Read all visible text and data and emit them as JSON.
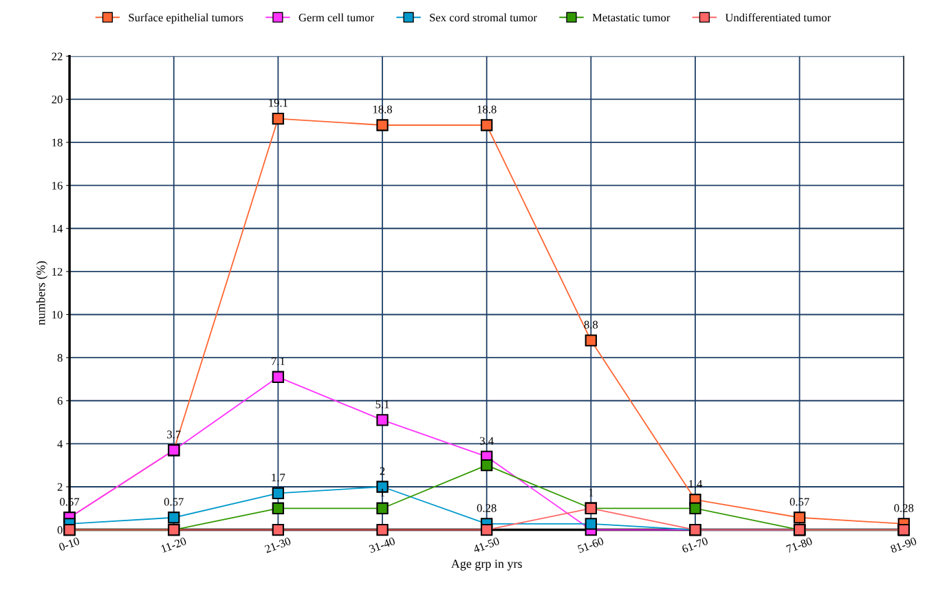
{
  "chart_data": {
    "type": "line",
    "xlabel": "Age grp in yrs",
    "ylabel": "numbers (%)",
    "categories": [
      "0-10",
      "11-20",
      "21-30",
      "31-40",
      "41-50",
      "51-60",
      "61-70",
      "71-80",
      "81-90"
    ],
    "series": [
      {
        "name": "Surface epithelial tumors",
        "color": "#ff6633",
        "values": [
          0.57,
          3.7,
          19.1,
          18.8,
          18.8,
          8.8,
          1.4,
          0.57,
          0.28
        ]
      },
      {
        "name": "Germ cell tumor",
        "color": "#ff33ff",
        "values": [
          0.57,
          3.7,
          7.1,
          5.1,
          3.4,
          0,
          0,
          0,
          0
        ],
        "value_labels": [
          null,
          null,
          "7.1",
          "5.1",
          "3.4",
          null,
          null,
          null,
          null
        ]
      },
      {
        "name": "Sex cord stromal tumor",
        "color": "#0099cc",
        "values": [
          0.28,
          0.57,
          1.7,
          2,
          0.28,
          0.28,
          0,
          0,
          0
        ],
        "value_labels": [
          null,
          "0.57",
          "1.7",
          "2",
          "0.28",
          null,
          null,
          null,
          null
        ]
      },
      {
        "name": "Metastatic tumor",
        "color": "#339900",
        "values": [
          0,
          0,
          1,
          1,
          3,
          1,
          1,
          0,
          0
        ],
        "value_labels": [
          null,
          null,
          null,
          "1",
          null,
          "1",
          null,
          null,
          null
        ]
      },
      {
        "name": "Undifferentiated tumor",
        "color": "#ff6666",
        "values": [
          0,
          0,
          0,
          0,
          0,
          1,
          0,
          0,
          0
        ],
        "value_labels": [
          null,
          null,
          null,
          null,
          null,
          null,
          null,
          null,
          null
        ]
      }
    ],
    "ylim": [
      0,
      22
    ],
    "yticks": [
      0,
      2,
      4,
      6,
      8,
      10,
      12,
      14,
      16,
      18,
      20,
      22
    ],
    "grid": true,
    "legend": "top",
    "marker": "square",
    "line_style": "solid",
    "data_labels": true
  }
}
